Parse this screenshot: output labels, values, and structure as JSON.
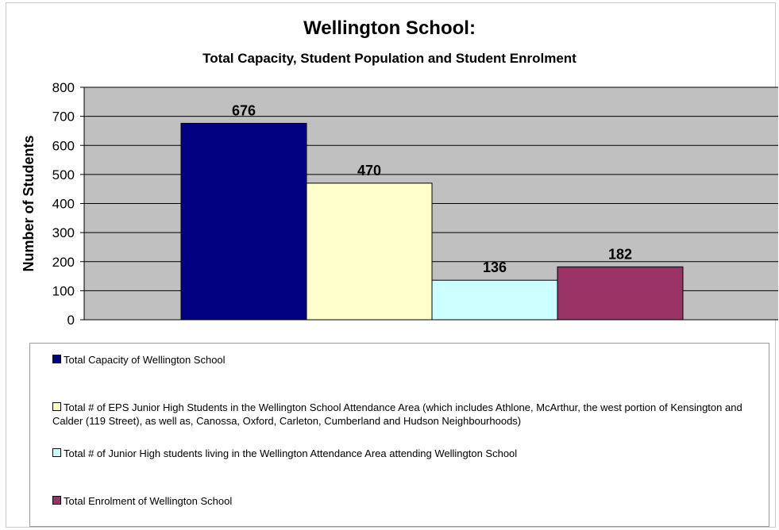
{
  "chart_data": {
    "type": "bar",
    "title": "Wellington School:",
    "subtitle": "Total Capacity, Student Population and Student Enrolment",
    "ylabel": "Number of Students",
    "xlabel": "",
    "ylim": [
      0,
      800
    ],
    "yticks": [
      0,
      100,
      200,
      300,
      400,
      500,
      600,
      700,
      800
    ],
    "grid": true,
    "plot_background": "#c0c0c0",
    "legend_position": "bottom",
    "series": [
      {
        "name": "Total Capacity of Wellington School",
        "value": 676,
        "label": "676",
        "color": "#000080"
      },
      {
        "name": "Total # of EPS Junior High Students in the Wellington School Attendance Area (which includes Athlone, McArthur, the west portion of Kensington and Calder (119 Street), as well as, Canossa, Oxford, Carleton, Cumberland and Hudson Neighbourhoods)",
        "value": 470,
        "label": "470",
        "color": "#ffffcc"
      },
      {
        "name": "Total # of Junior High students living in the Wellington Attendance Area attending Wellington School",
        "value": 136,
        "label": "136",
        "color": "#ccffff"
      },
      {
        "name": "Total Enrolment of Wellington School",
        "value": 182,
        "label": "182",
        "color": "#993366"
      }
    ]
  }
}
